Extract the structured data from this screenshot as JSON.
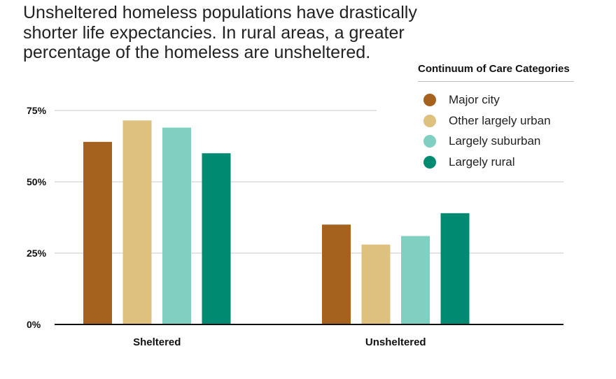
{
  "title_lines": [
    "Unsheltered homeless populations have drastically",
    "shorter life expectancies. In rural areas, a greater",
    "percentage of the homeless are unsheltered."
  ],
  "legend_title": "Continuum of Care Categories",
  "chart_data": {
    "type": "bar",
    "title": "Unsheltered homeless populations have drastically shorter life expectancies. In rural areas, a greater percentage of the homeless are unsheltered.",
    "xlabel": "",
    "ylabel": "",
    "categories": [
      "Sheltered",
      "Unsheltered"
    ],
    "series": [
      {
        "name": "Major city",
        "color": "#a5611e",
        "values": [
          64,
          35
        ]
      },
      {
        "name": "Other largely urban",
        "color": "#dfc17f",
        "values": [
          71.5,
          28
        ]
      },
      {
        "name": "Largely suburban",
        "color": "#80cfc1",
        "values": [
          69,
          31
        ]
      },
      {
        "name": "Largely rural",
        "color": "#008a72",
        "values": [
          60,
          39
        ]
      }
    ],
    "ylim": [
      0,
      75
    ],
    "yticks": [
      0,
      25,
      50,
      75
    ],
    "ytick_labels": [
      "0%",
      "25%",
      "50%",
      "75%"
    ],
    "grid": true,
    "legend_position": "top-right"
  }
}
